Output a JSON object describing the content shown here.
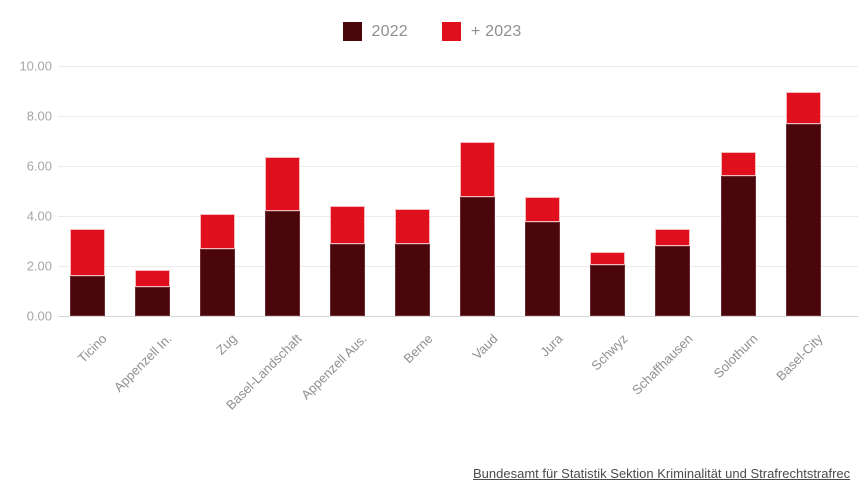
{
  "legend": {
    "items": [
      {
        "label": "2022",
        "color": "#4a060b"
      },
      {
        "label": "+ 2023",
        "color": "#e00f1e"
      }
    ]
  },
  "chart_data": {
    "type": "bar",
    "stacked": true,
    "title": "",
    "xlabel": "",
    "ylabel": "",
    "ylim": [
      0,
      10
    ],
    "grid": true,
    "legend_position": "top-center",
    "yticks": [
      "0.00",
      "2.00",
      "4.00",
      "6.00",
      "8.00",
      "10.00"
    ],
    "categories": [
      "Ticino",
      "Appenzell In.",
      "Zug",
      "Basel-Landschaft",
      "Appenzell Aus.",
      "Berne",
      "Vaud",
      "Jura",
      "Schwyz",
      "Schaffhausen",
      "Solothurn",
      "Basel-City"
    ],
    "series": [
      {
        "name": "2022",
        "color": "#4a060b",
        "values": [
          1.6,
          1.15,
          2.7,
          4.2,
          2.9,
          2.9,
          4.75,
          3.75,
          2.05,
          2.8,
          5.6,
          7.7
        ]
      },
      {
        "name": "+ 2023",
        "color": "#e00f1e",
        "values": [
          1.9,
          0.7,
          1.4,
          2.15,
          1.5,
          1.4,
          2.2,
          1.0,
          0.5,
          0.7,
          0.95,
          1.25
        ]
      }
    ],
    "totals": [
      3.5,
      1.85,
      4.1,
      6.35,
      4.4,
      4.3,
      6.95,
      4.75,
      2.55,
      3.5,
      6.55,
      8.95
    ]
  },
  "source": {
    "text": "Bundesamt für Statistik Sektion Kriminalität und Strafrechtstrafrec"
  }
}
